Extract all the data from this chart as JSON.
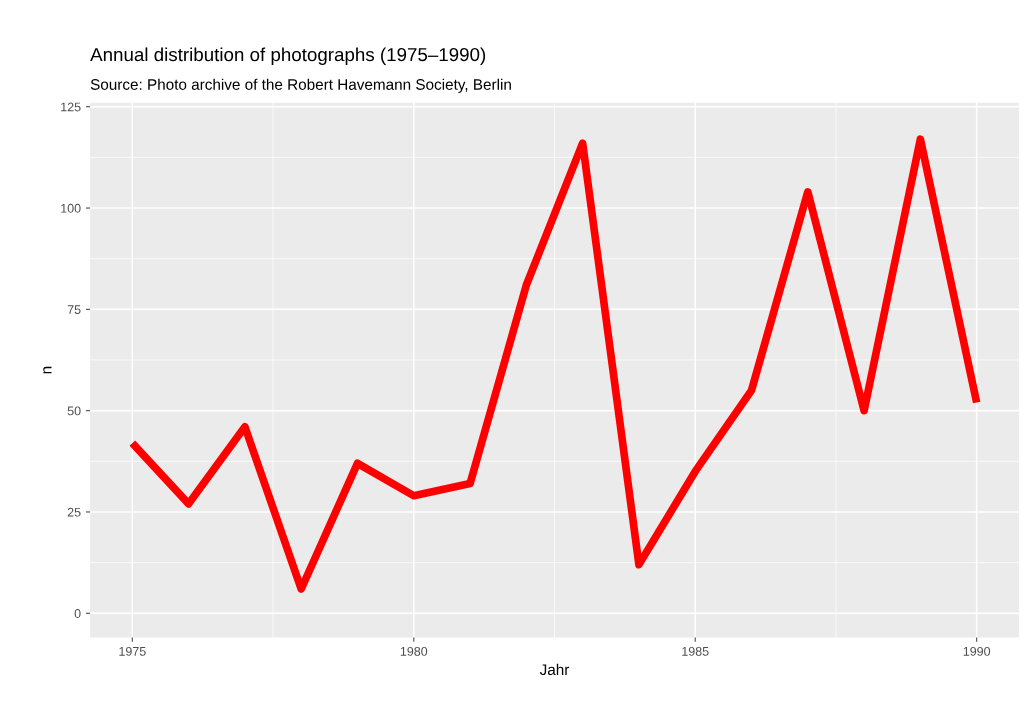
{
  "chart_data": {
    "type": "line",
    "title": "Annual distribution of photographs (1975–1990)",
    "subtitle": "Source: Photo archive of the Robert Havemann Society, Berlin",
    "xlabel": "Jahr",
    "ylabel": "n",
    "x": [
      1975,
      1976,
      1977,
      1978,
      1979,
      1980,
      1981,
      1982,
      1983,
      1984,
      1985,
      1986,
      1987,
      1988,
      1989,
      1990
    ],
    "series": [
      {
        "color": "#ff0000",
        "values": [
          42,
          27,
          46,
          6,
          37,
          29,
          32,
          81,
          116,
          12,
          35,
          55,
          104,
          50,
          117,
          52
        ]
      }
    ],
    "xlim": [
      1974.25,
      1990.75
    ],
    "xticks": [
      1975,
      1980,
      1985,
      1990
    ],
    "ylim": [
      -6,
      126
    ],
    "yticks": [
      0,
      25,
      50,
      75,
      100,
      125
    ],
    "grid": true,
    "legend": false,
    "marker": "none",
    "line_style": "solid"
  }
}
